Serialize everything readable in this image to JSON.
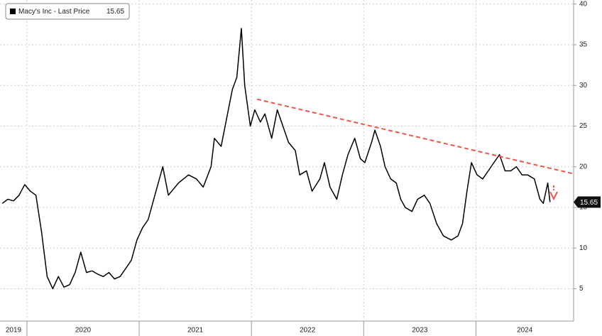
{
  "chart_data": {
    "type": "line",
    "series": [
      {
        "name": "Macy's Inc - Last Price",
        "color": "#000000",
        "x": [
          2019.78,
          2019.83,
          2019.88,
          2019.93,
          2019.98,
          2020.03,
          2020.08,
          2020.13,
          2020.18,
          2020.23,
          2020.28,
          2020.33,
          2020.38,
          2020.43,
          2020.48,
          2020.53,
          2020.58,
          2020.63,
          2020.68,
          2020.73,
          2020.78,
          2020.83,
          2020.88,
          2020.93,
          2020.98,
          2021.03,
          2021.08,
          2021.13,
          2021.21,
          2021.26,
          2021.35,
          2021.44,
          2021.51,
          2021.57,
          2021.64,
          2021.67,
          2021.73,
          2021.78,
          2021.83,
          2021.87,
          2021.91,
          2021.94,
          2021.99,
          2022.03,
          2022.08,
          2022.12,
          2022.18,
          2022.23,
          2022.28,
          2022.33,
          2022.39,
          2022.43,
          2022.49,
          2022.54,
          2022.61,
          2022.65,
          2022.7,
          2022.76,
          2022.81,
          2022.86,
          2022.92,
          2022.97,
          2023.01,
          2023.07,
          2023.1,
          2023.15,
          2023.19,
          2023.24,
          2023.29,
          2023.33,
          2023.37,
          2023.43,
          2023.48,
          2023.54,
          2023.59,
          2023.65,
          2023.71,
          2023.78,
          2023.84,
          2023.88,
          2023.92,
          2023.96,
          2024.01,
          2024.06,
          2024.11,
          2024.16,
          2024.21,
          2024.26,
          2024.31,
          2024.36,
          2024.41,
          2024.46,
          2024.52,
          2024.57,
          2024.6,
          2024.64,
          2024.66
        ],
        "values": [
          15.5,
          16,
          15.8,
          16.5,
          17.8,
          17,
          16.5,
          12,
          6.5,
          5,
          6.5,
          5.2,
          5.5,
          7,
          9.5,
          7,
          7.2,
          6.8,
          6.5,
          7,
          6.2,
          6.5,
          7.5,
          8.5,
          11,
          12.5,
          13.5,
          16,
          20,
          16.5,
          18,
          19,
          18.5,
          17.5,
          20,
          23.5,
          22.5,
          26,
          29.5,
          31,
          37,
          30,
          25,
          27,
          25.5,
          26.5,
          23.5,
          27,
          25,
          23,
          22,
          19,
          19.5,
          17,
          18.5,
          20.5,
          17.5,
          16,
          19,
          21.5,
          23.5,
          21,
          20.5,
          23,
          24.5,
          22.5,
          20,
          18.5,
          18,
          16,
          15,
          14.5,
          16,
          16.5,
          15.5,
          13,
          11.5,
          11,
          11.5,
          13,
          17,
          20.5,
          19,
          18.5,
          19.5,
          20.5,
          21.5,
          19.5,
          19.5,
          20,
          19,
          19,
          18.5,
          16,
          15.5,
          18,
          15.65
        ]
      }
    ],
    "last_price": 15.65,
    "trendline": {
      "x": [
        2022.05,
        2024.88
      ],
      "y": [
        28.3,
        19.1
      ],
      "color": "#f0564a"
    },
    "xlim": [
      2019.76,
      2024.87
    ],
    "xticks": [
      2019,
      2020,
      2021,
      2022,
      2023,
      2024
    ],
    "ylim": [
      1.2,
      40.5
    ],
    "yticks": [
      5,
      10,
      15,
      20,
      25,
      30,
      35,
      40
    ],
    "grid": true
  }
}
